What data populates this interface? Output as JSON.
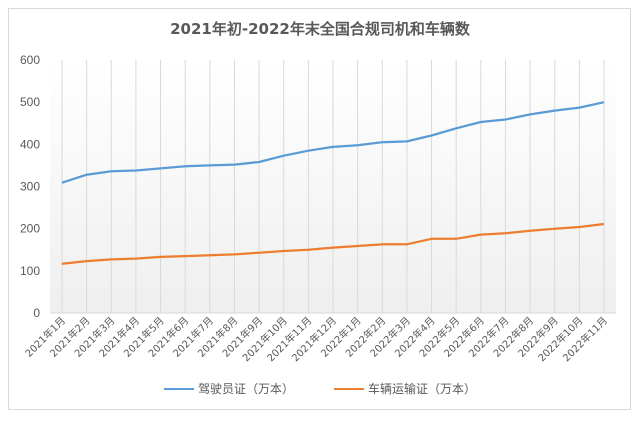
{
  "chart_data": {
    "type": "line",
    "title": "2021年初-2022年末全国合规司机和车辆数",
    "xlabel": "",
    "ylabel": "",
    "ylim": [
      0,
      600
    ],
    "yticks": [
      0,
      100,
      200,
      300,
      400,
      500,
      600
    ],
    "grid": "vertical",
    "legend_position": "bottom",
    "categories": [
      "2021年1月",
      "2021年2月",
      "2021年3月",
      "2021年4月",
      "2021年5月",
      "2021年6月",
      "2021年7月",
      "2021年8月",
      "2021年9月",
      "2021年10月",
      "2021年11月",
      "2021年12月",
      "2022年1月",
      "2022年2月",
      "2022年3月",
      "2022年4月",
      "2022年5月",
      "2022年6月",
      "2022年7月",
      "2022年8月",
      "2022年9月",
      "2022年10月",
      "2022年11月"
    ],
    "series": [
      {
        "name": "驾驶员证（万本）",
        "color": "#5b9bd5",
        "values": [
          309,
          328,
          336,
          338,
          343,
          348,
          350,
          352,
          358,
          373,
          385,
          394,
          398,
          405,
          407,
          421,
          438,
          453,
          459,
          471,
          480,
          487,
          500
        ]
      },
      {
        "name": "车辆运输证（万本）",
        "color": "#ed7d31",
        "values": [
          117,
          123,
          127,
          129,
          133,
          135,
          137,
          139,
          143,
          147,
          150,
          155,
          159,
          163,
          163,
          176,
          176,
          186,
          189,
          195,
          200,
          204,
          211
        ]
      }
    ]
  },
  "legend": {
    "items": [
      {
        "label": "驾驶员证（万本）",
        "color": "#5b9bd5"
      },
      {
        "label": "车辆运输证（万本）",
        "color": "#ed7d31"
      }
    ]
  }
}
